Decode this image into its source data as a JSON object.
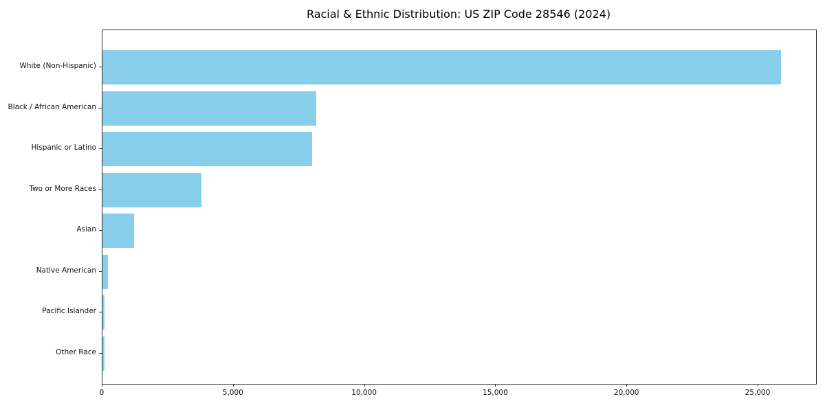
{
  "title": "Racial & Ethnic Distribution: US ZIP Code 28546 (2024)",
  "chart_data": {
    "type": "bar",
    "orientation": "horizontal",
    "title": "Racial & Ethnic Distribution: US ZIP Code 28546 (2024)",
    "categories": [
      "White (Non-Hispanic)",
      "Black / African American",
      "Hispanic or Latino",
      "Two or More Races",
      "Asian",
      "Native American",
      "Pacific Islander",
      "Other Race"
    ],
    "values": [
      25860,
      8140,
      7980,
      3770,
      1200,
      210,
      65,
      80
    ],
    "bar_color": "#87CEEB",
    "spine_color": "#262626",
    "text_color": "#111111",
    "xlabel": "",
    "ylabel": "",
    "xlim": [
      0,
      27200
    ],
    "xticks": [
      0,
      5000,
      10000,
      15000,
      20000,
      25000
    ],
    "xtick_labels": [
      "0",
      "5,000",
      "10,000",
      "15,000",
      "20,000",
      "25,000"
    ],
    "grid": false,
    "legend": null,
    "background": "#ffffff"
  }
}
